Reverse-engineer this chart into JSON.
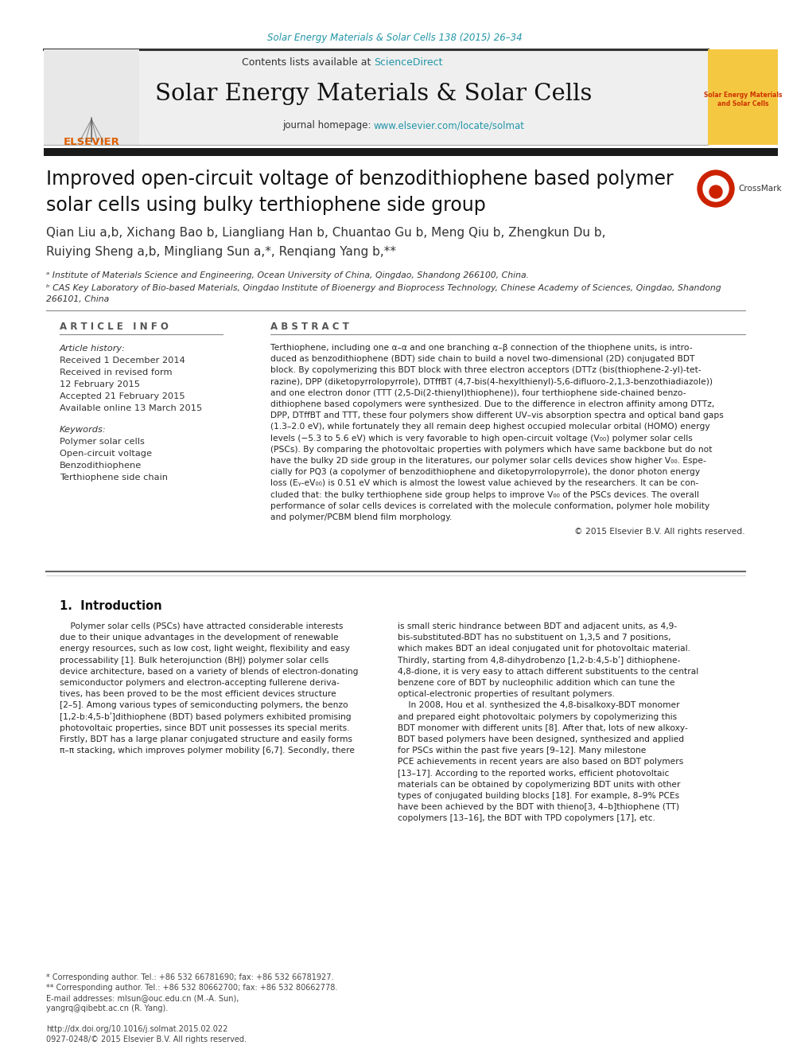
{
  "journal_ref": "Solar Energy Materials & Solar Cells 138 (2015) 26–34",
  "header_text": "Contents lists available at ScienceDirect",
  "journal_title": "Solar Energy Materials & Solar Cells",
  "journal_homepage": "journal homepage: www.elsevier.com/locate/solmat",
  "paper_title_line1": "Improved open-circuit voltage of benzodithiophene based polymer",
  "paper_title_line2": "solar cells using bulky terthiophene side group",
  "author_line1": "Qian Liu a,b, Xichang Bao b, Liangliang Han b, Chuantao Gu b, Meng Qiu b, Zhengkun Du b,",
  "author_line2": "Ruiying Sheng a,b, Mingliang Sun a,*, Renqiang Yang b,**",
  "affil_a": "ᵃ Institute of Materials Science and Engineering, Ocean University of China, Qingdao, Shandong 266100, China.",
  "affil_b": "ᵇ CAS Key Laboratory of Bio-based Materials, Qingdao Institute of Bioenergy and Bioprocess Technology, Chinese Academy of Sciences, Qingdao, Shandong",
  "affil_b2": "266101, China",
  "article_info_header": "A R T I C L E   I N F O",
  "abstract_header": "A B S T R A C T",
  "article_history_label": "Article history:",
  "received1": "Received 1 December 2014",
  "revised_label": "Received in revised form",
  "revised_date": "12 February 2015",
  "accepted": "Accepted 21 February 2015",
  "available": "Available online 13 March 2015",
  "keywords_label": "Keywords:",
  "keywords": [
    "Polymer solar cells",
    "Open-circuit voltage",
    "Benzodithiophene",
    "Terthiophene side chain"
  ],
  "abstract_lines": [
    "Terthiophene, including one α–α and one branching α–β connection of the thiophene units, is intro-",
    "duced as benzodithiophene (BDT) side chain to build a novel two-dimensional (2D) conjugated BDT",
    "block. By copolymerizing this BDT block with three electron acceptors (DTTz (bis(thiophene-2-yl)-tet-",
    "razine), DPP (diketopyrrolopyrrole), DTffBT (4,7-bis(4-hexylthienyl)-5,6-difluoro-2,1,3-benzothiadiazole))",
    "and one electron donor (TTT (2,5-Di(2-thienyl)thiophene)), four terthiophene side-chained benzo-",
    "dithiophene based copolymers were synthesized. Due to the difference in electron affinity among DTTz,",
    "DPP, DTffBT and TTT, these four polymers show different UV–vis absorption spectra and optical band gaps",
    "(1.3–2.0 eV), while fortunately they all remain deep highest occupied molecular orbital (HOMO) energy",
    "levels (−5.3 to 5.6 eV) which is very favorable to high open-circuit voltage (V₀₀) polymer solar cells",
    "(PSCs). By comparing the photovoltaic properties with polymers which have same backbone but do not",
    "have the bulky 2D side group in the literatures, our polymer solar cells devices show higher V₀₀. Espe-",
    "cially for PQ3 (a copolymer of benzodithiophene and diketopyrrolopyrrole), the donor photon energy",
    "loss (Eᵧ-eV₀₀) is 0.51 eV which is almost the lowest value achieved by the researchers. It can be con-",
    "cluded that: the bulky terthiophene side group helps to improve V₀₀ of the PSCs devices. The overall",
    "performance of solar cells devices is correlated with the molecule conformation, polymer hole mobility",
    "and polymer/PCBM blend film morphology."
  ],
  "copyright": "© 2015 Elsevier B.V. All rights reserved.",
  "intro_header": "1.  Introduction",
  "intro_col1_lines": [
    "    Polymer solar cells (PSCs) have attracted considerable interests",
    "due to their unique advantages in the development of renewable",
    "energy resources, such as low cost, light weight, flexibility and easy",
    "processability [1]. Bulk heterojunction (BHJ) polymer solar cells",
    "device architecture, based on a variety of blends of electron-donating",
    "semiconductor polymers and electron-accepting fullerene deriva-",
    "tives, has been proved to be the most efficient devices structure",
    "[2–5]. Among various types of semiconducting polymers, the benzo",
    "[1,2-b:4,5-bʹ]dithiophene (BDT) based polymers exhibited promising",
    "photovoltaic properties, since BDT unit possesses its special merits.",
    "Firstly, BDT has a large planar conjugated structure and easily forms",
    "π–π stacking, which improves polymer mobility [6,7]. Secondly, there"
  ],
  "intro_col2_lines": [
    "is small steric hindrance between BDT and adjacent units, as 4,9-",
    "bis-substituted-BDT has no substituent on 1,3,5 and 7 positions,",
    "which makes BDT an ideal conjugated unit for photovoltaic material.",
    "Thirdly, starting from 4,8-dihydrobenzo [1,2-b:4,5-bʹ] dithiophene-",
    "4,8-dione, it is very easy to attach different substituents to the central",
    "benzene core of BDT by nucleophilic addition which can tune the",
    "optical-electronic properties of resultant polymers.",
    "    In 2008, Hou et al. synthesized the 4,8-bisalkoxy-BDT monomer",
    "and prepared eight photovoltaic polymers by copolymerizing this",
    "BDT monomer with different units [8]. After that, lots of new alkoxy-",
    "BDT based polymers have been designed, synthesized and applied",
    "for PSCs within the past five years [9–12]. Many milestone",
    "PCE achievements in recent years are also based on BDT polymers",
    "[13–17]. According to the reported works, efficient photovoltaic",
    "materials can be obtained by copolymerizing BDT units with other",
    "types of conjugated building blocks [18]. For example, 8–9% PCEs",
    "have been achieved by the BDT with thieno[3, 4–b]thiophene (TT)",
    "copolymers [13–16], the BDT with TPD copolymers [17], etc."
  ],
  "footer_lines": [
    "* Corresponding author. Tel.: +86 532 66781690; fax: +86 532 66781927.",
    "** Corresponding author. Tel.: +86 532 80662700; fax: +86 532 80662778.",
    "E-mail addresses: mlsun@ouc.edu.cn (M.-A. Sun),",
    "yangrq@qibebt.ac.cn (R. Yang).",
    "",
    "http://dx.doi.org/10.1016/j.solmat.2015.02.022",
    "0927-0248/© 2015 Elsevier B.V. All rights reserved."
  ],
  "bg_color": "#ffffff",
  "header_bg": "#efefef",
  "link_color": "#2196a8",
  "title_color": "#111111",
  "text_color": "#222222",
  "section_color": "#555555",
  "rule_color": "#888888",
  "dark_bar_color": "#1a1a1a",
  "elsevier_color": "#e06000",
  "cover_bg": "#f5c842",
  "cover_text_color": "#cc3300"
}
